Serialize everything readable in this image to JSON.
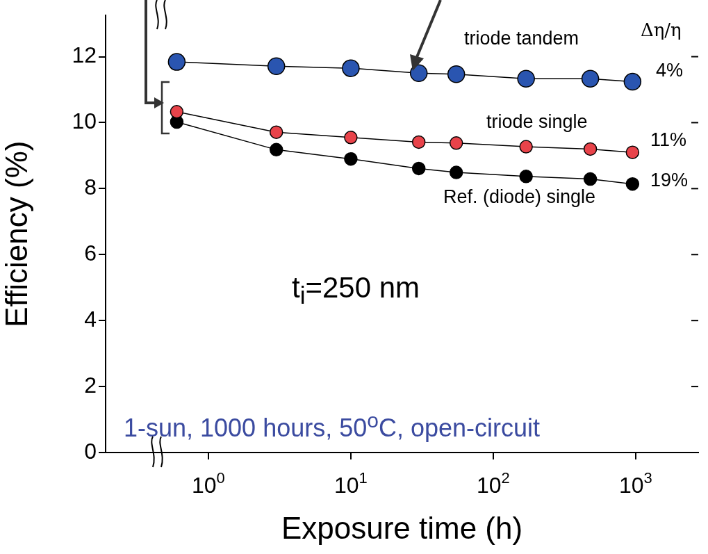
{
  "chart_data": {
    "type": "line",
    "xlabel": "Exposure time (h)",
    "ylabel": "Efficiency (%)",
    "x": [
      0.6,
      3,
      10,
      30,
      55,
      170,
      480,
      950
    ],
    "series": [
      {
        "name": "triode tandem",
        "color": "#2a55b0",
        "values": [
          11.84,
          11.71,
          11.65,
          11.5,
          11.47,
          11.33,
          11.33,
          11.24
        ]
      },
      {
        "name": "triode single",
        "color": "#e8434a",
        "values": [
          10.33,
          9.71,
          9.55,
          9.41,
          9.38,
          9.27,
          9.2,
          9.1
        ]
      },
      {
        "name": "Ref. (diode) single",
        "color": "#000000",
        "values": [
          10.02,
          9.18,
          8.9,
          8.61,
          8.49,
          8.37,
          8.29,
          8.14
        ]
      }
    ],
    "log": "x",
    "xlim": [
      0.19,
      2750
    ],
    "xticks": [
      {
        "value": 1,
        "label": "10$^{0}$"
      },
      {
        "value": 10,
        "label": "10$^{1}$"
      },
      {
        "value": 100,
        "label": "10$^{2}$"
      },
      {
        "value": 1000,
        "label": "10$^{3}$"
      }
    ],
    "ylim": [
      0,
      13.25
    ],
    "yticks": [
      0,
      2,
      4,
      6,
      8,
      10,
      12
    ],
    "grid": false,
    "legend": false,
    "marker": "circle",
    "line_style": "solid",
    "annotations": [
      "Δη/η",
      "4%",
      "11%",
      "19%",
      "t$_{i}$=250 nm",
      "1-sun, 1000 hours, 50$^{o}$C, open-circuit"
    ]
  }
}
